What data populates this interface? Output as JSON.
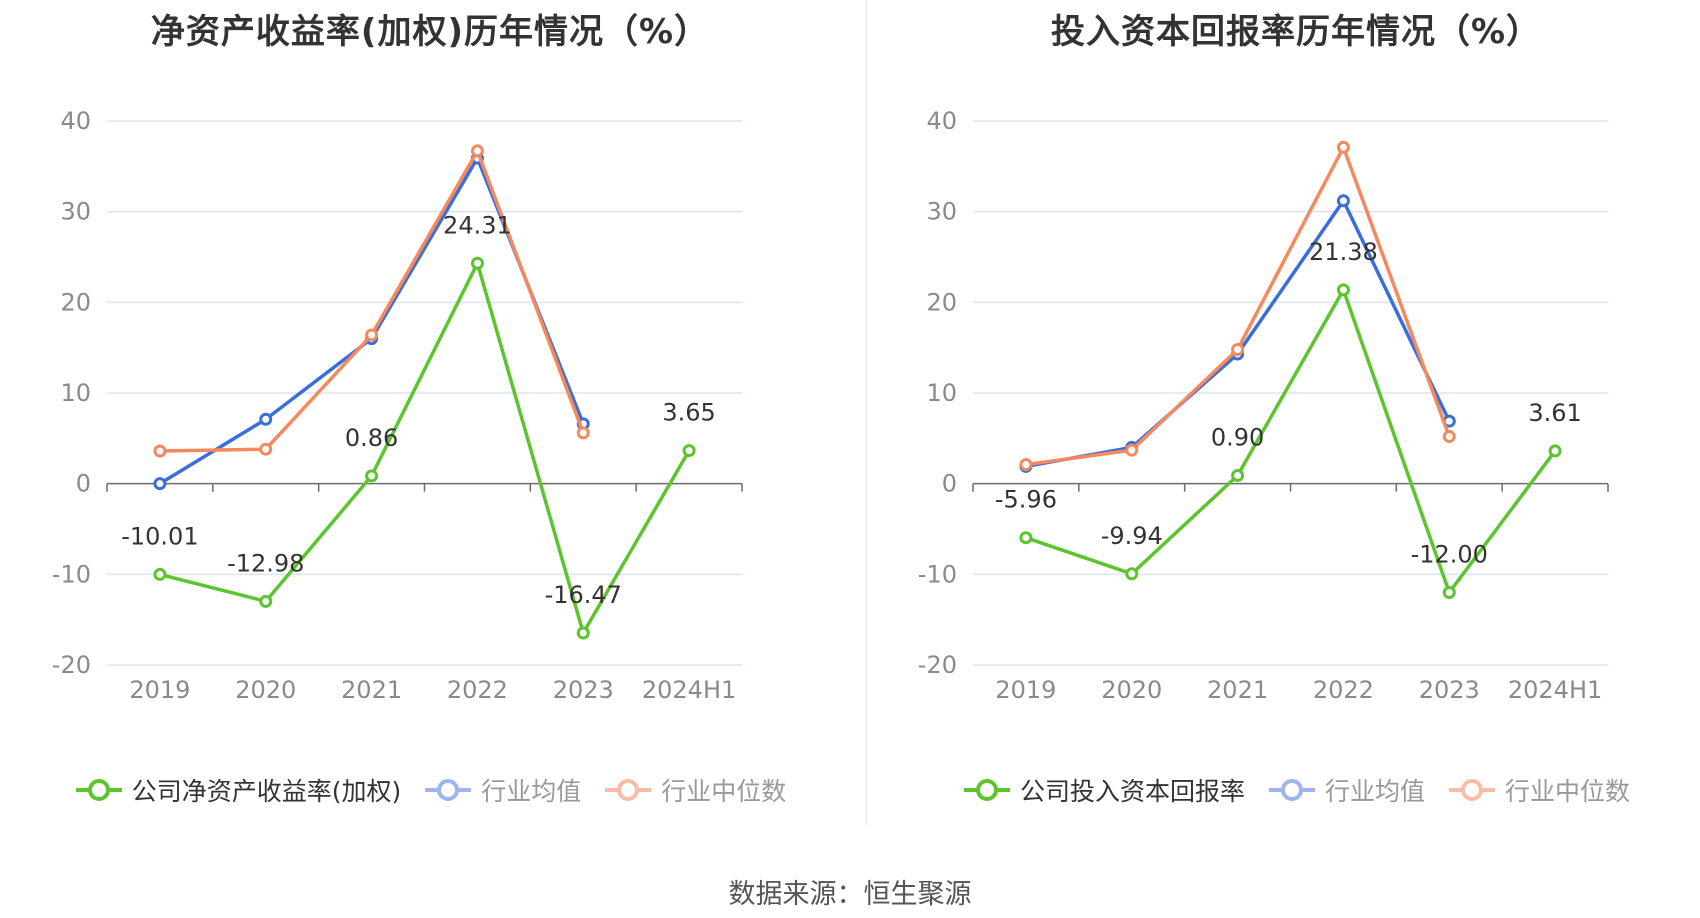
{
  "source": "数据来源：恒生聚源",
  "colors": {
    "company": "#5cc52e",
    "avg": "#3a6fdb",
    "median": "#f5895e",
    "grid": "#dde3f0",
    "axis": "#6b6b6b"
  },
  "chart_data": [
    {
      "type": "line",
      "title": "净资产收益率(加权)历年情况（%）",
      "categories": [
        "2019",
        "2020",
        "2021",
        "2022",
        "2023",
        "2024H1"
      ],
      "ylim": [
        -20,
        40
      ],
      "yticks": [
        "40",
        "30",
        "20",
        "10",
        "0",
        "-10",
        "-20"
      ],
      "grid": true,
      "legend_position": "bottom",
      "series": [
        {
          "key": "company",
          "name": "公司净资产收益率(加权)",
          "values": [
            -10.01,
            -12.98,
            0.86,
            24.31,
            -16.47,
            3.65
          ],
          "labels": [
            "-10.01",
            "-12.98",
            "0.86",
            "24.31",
            "-16.47",
            "3.65"
          ]
        },
        {
          "key": "avg",
          "name": "行业均值",
          "values": [
            0.0,
            7.1,
            16.0,
            35.9,
            6.6,
            null
          ]
        },
        {
          "key": "median",
          "name": "行业中位数",
          "values": [
            3.6,
            3.8,
            16.4,
            36.7,
            5.6,
            null
          ]
        }
      ]
    },
    {
      "type": "line",
      "title": "投入资本回报率历年情况（%）",
      "categories": [
        "2019",
        "2020",
        "2021",
        "2022",
        "2023",
        "2024H1"
      ],
      "ylim": [
        -20,
        40
      ],
      "yticks": [
        "40",
        "30",
        "20",
        "10",
        "0",
        "-10",
        "-20"
      ],
      "grid": true,
      "legend_position": "bottom",
      "series": [
        {
          "key": "company",
          "name": "公司投入资本回报率",
          "values": [
            -5.96,
            -9.94,
            0.9,
            21.38,
            -12.0,
            3.61
          ],
          "labels": [
            "-5.96",
            "-9.94",
            "0.90",
            "21.38",
            "-12.00",
            "3.61"
          ]
        },
        {
          "key": "avg",
          "name": "行业均值",
          "values": [
            1.9,
            4.0,
            14.3,
            31.2,
            6.9,
            null
          ]
        },
        {
          "key": "median",
          "name": "行业中位数",
          "values": [
            2.1,
            3.7,
            14.8,
            37.1,
            5.2,
            null
          ]
        }
      ]
    }
  ]
}
